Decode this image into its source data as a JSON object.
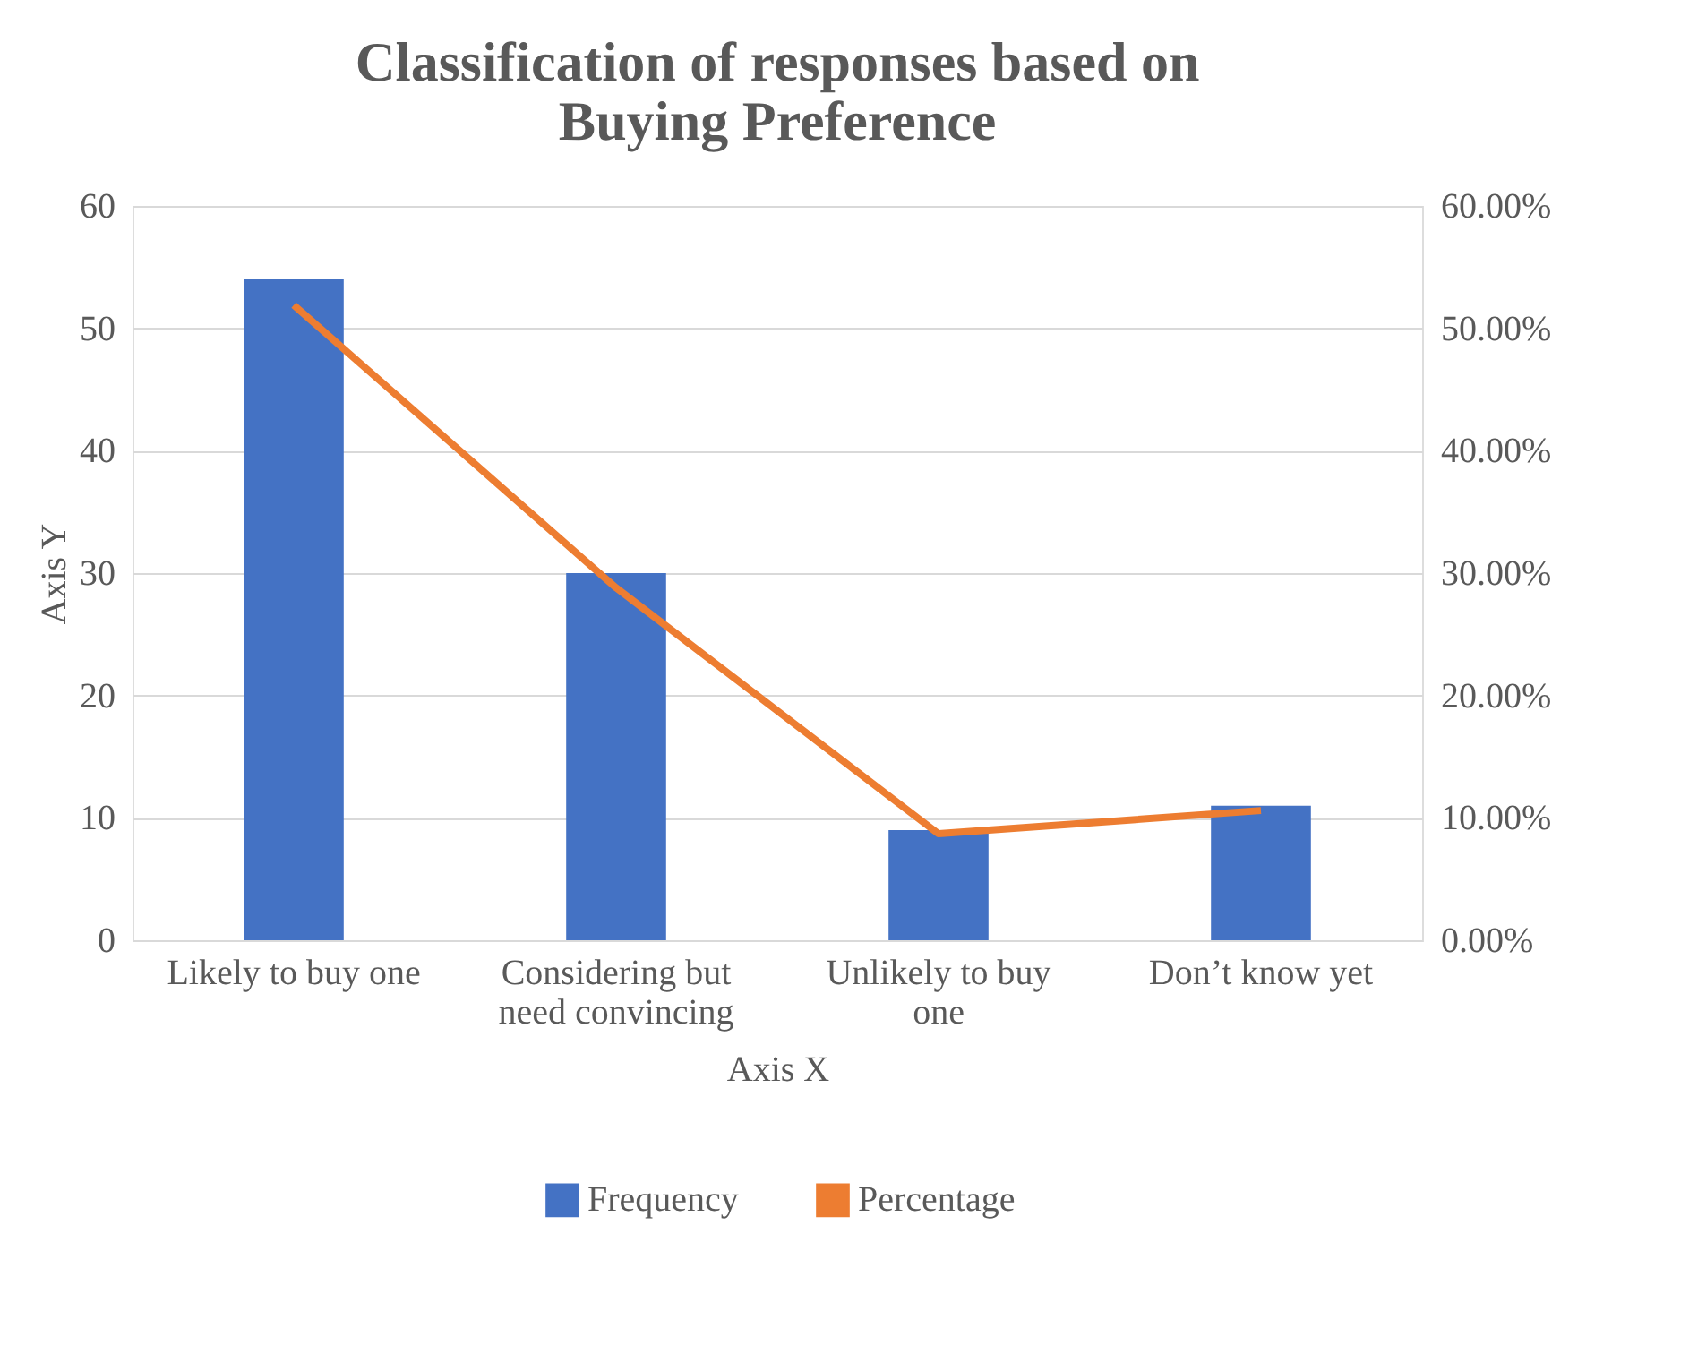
{
  "chart_data": {
    "type": "bar",
    "title": "Classification of responses based on Buying Preference",
    "xlabel": "Axis X",
    "ylabel": "Axis Y",
    "categories": [
      "Likely to buy one",
      "Considering but need convincing",
      "Unlikely to buy one",
      "Don’t know yet"
    ],
    "series": [
      {
        "name": "Frequency",
        "color": "#4472c4",
        "values": [
          54,
          30,
          9,
          11
        ]
      },
      {
        "name": "Percentage",
        "type": "line",
        "axis": "y2",
        "color": "#ed7d31",
        "values": [
          51.9,
          28.8,
          8.7,
          10.6
        ]
      }
    ],
    "ylim": [
      0,
      60
    ],
    "yticks": [
      0,
      10,
      20,
      30,
      40,
      50,
      60
    ],
    "y2lim": [
      0,
      60
    ],
    "y2ticks": [
      {
        "value": 0,
        "label": "0.00%"
      },
      {
        "value": 10,
        "label": "10.00%"
      },
      {
        "value": 20,
        "label": "20.00%"
      },
      {
        "value": 30,
        "label": "30.00%"
      },
      {
        "value": 40,
        "label": "40.00%"
      },
      {
        "value": 50,
        "label": "50.00%"
      },
      {
        "value": 60,
        "label": "60.00%"
      }
    ],
    "grid": "y",
    "legend": "bottom",
    "marker": "none",
    "line_style": "solid"
  }
}
